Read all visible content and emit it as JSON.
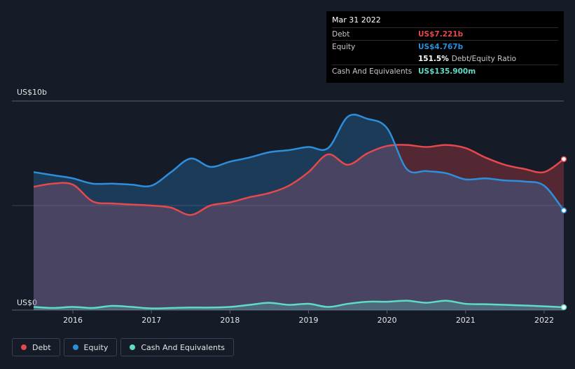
{
  "tooltip": {
    "date": "Mar 31 2022",
    "rows": [
      {
        "label": "Debt",
        "value": "US$7.221b"
      },
      {
        "label": "Equity",
        "value": "US$4.767b"
      },
      {
        "label": "Cash And Equivalents",
        "value": "US$135.900m"
      }
    ],
    "ratio_value": "151.5%",
    "ratio_text": "Debt/Equity Ratio"
  },
  "colors": {
    "debt": "#e5484d",
    "equity": "#2d8fdc",
    "cash": "#5fdcc7",
    "background": "#151b27"
  },
  "legend": [
    {
      "label": "Debt",
      "color": "#e5484d"
    },
    {
      "label": "Equity",
      "color": "#2d8fdc"
    },
    {
      "label": "Cash And Equivalents",
      "color": "#5fdcc7"
    }
  ],
  "chart_data": {
    "type": "area",
    "title": "",
    "ylabel": "",
    "y_top_label": "US$10b",
    "y_bottom_label": "US$0",
    "ylim": [
      0,
      10
    ],
    "xlim": [
      2015.5,
      2022.25
    ],
    "x_ticks": [
      {
        "x": 2016,
        "label": "2016"
      },
      {
        "x": 2017,
        "label": "2017"
      },
      {
        "x": 2018,
        "label": "2018"
      },
      {
        "x": 2019,
        "label": "2019"
      },
      {
        "x": 2020,
        "label": "2020"
      },
      {
        "x": 2021,
        "label": "2021"
      },
      {
        "x": 2022,
        "label": "2022"
      }
    ],
    "series": [
      {
        "name": "Debt",
        "points": [
          [
            2015.5,
            5.9
          ],
          [
            2015.75,
            6.05
          ],
          [
            2016.0,
            6.0
          ],
          [
            2016.25,
            5.2
          ],
          [
            2016.5,
            5.1
          ],
          [
            2016.75,
            5.05
          ],
          [
            2017.0,
            5.0
          ],
          [
            2017.25,
            4.9
          ],
          [
            2017.5,
            4.55
          ],
          [
            2017.75,
            5.0
          ],
          [
            2018.0,
            5.15
          ],
          [
            2018.25,
            5.4
          ],
          [
            2018.5,
            5.6
          ],
          [
            2018.75,
            5.95
          ],
          [
            2019.0,
            6.6
          ],
          [
            2019.25,
            7.45
          ],
          [
            2019.5,
            6.95
          ],
          [
            2019.75,
            7.5
          ],
          [
            2020.0,
            7.85
          ],
          [
            2020.25,
            7.9
          ],
          [
            2020.5,
            7.8
          ],
          [
            2020.75,
            7.9
          ],
          [
            2021.0,
            7.75
          ],
          [
            2021.25,
            7.3
          ],
          [
            2021.5,
            6.95
          ],
          [
            2021.75,
            6.75
          ],
          [
            2022.0,
            6.6
          ],
          [
            2022.25,
            7.221
          ]
        ]
      },
      {
        "name": "Equity",
        "points": [
          [
            2015.5,
            6.6
          ],
          [
            2015.75,
            6.45
          ],
          [
            2016.0,
            6.3
          ],
          [
            2016.25,
            6.05
          ],
          [
            2016.5,
            6.05
          ],
          [
            2016.75,
            6.0
          ],
          [
            2017.0,
            5.95
          ],
          [
            2017.25,
            6.6
          ],
          [
            2017.5,
            7.25
          ],
          [
            2017.75,
            6.85
          ],
          [
            2018.0,
            7.1
          ],
          [
            2018.25,
            7.3
          ],
          [
            2018.5,
            7.55
          ],
          [
            2018.75,
            7.65
          ],
          [
            2019.0,
            7.8
          ],
          [
            2019.25,
            7.75
          ],
          [
            2019.5,
            9.25
          ],
          [
            2019.75,
            9.15
          ],
          [
            2020.0,
            8.7
          ],
          [
            2020.25,
            6.75
          ],
          [
            2020.5,
            6.65
          ],
          [
            2020.75,
            6.55
          ],
          [
            2021.0,
            6.25
          ],
          [
            2021.25,
            6.3
          ],
          [
            2021.5,
            6.2
          ],
          [
            2021.75,
            6.15
          ],
          [
            2022.0,
            5.95
          ],
          [
            2022.25,
            4.767
          ]
        ]
      },
      {
        "name": "Cash And Equivalents",
        "points": [
          [
            2015.5,
            0.15
          ],
          [
            2015.75,
            0.1
          ],
          [
            2016.0,
            0.15
          ],
          [
            2016.25,
            0.1
          ],
          [
            2016.5,
            0.2
          ],
          [
            2016.75,
            0.15
          ],
          [
            2017.0,
            0.08
          ],
          [
            2017.25,
            0.1
          ],
          [
            2017.5,
            0.12
          ],
          [
            2017.75,
            0.12
          ],
          [
            2018.0,
            0.15
          ],
          [
            2018.25,
            0.25
          ],
          [
            2018.5,
            0.35
          ],
          [
            2018.75,
            0.25
          ],
          [
            2019.0,
            0.3
          ],
          [
            2019.25,
            0.15
          ],
          [
            2019.5,
            0.3
          ],
          [
            2019.75,
            0.4
          ],
          [
            2020.0,
            0.4
          ],
          [
            2020.25,
            0.45
          ],
          [
            2020.5,
            0.35
          ],
          [
            2020.75,
            0.45
          ],
          [
            2021.0,
            0.3
          ],
          [
            2021.25,
            0.28
          ],
          [
            2021.5,
            0.25
          ],
          [
            2021.75,
            0.22
          ],
          [
            2022.0,
            0.18
          ],
          [
            2022.25,
            0.136
          ]
        ]
      }
    ]
  }
}
